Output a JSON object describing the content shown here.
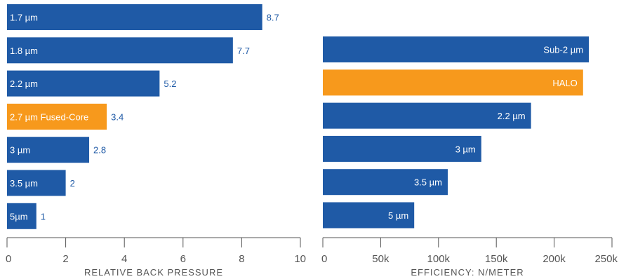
{
  "colors": {
    "bar": "#1f5aa6",
    "highlight": "#f7991c",
    "axis": "#555555",
    "value_text": "#1f5aa6"
  },
  "chart_data": [
    {
      "type": "bar",
      "orientation": "horizontal",
      "categories": [
        "1.7 µm",
        "1.8 µm",
        "2.2 µm",
        "2.7 µm Fused-Core",
        "3 µm",
        "3.5 µm",
        "5µm"
      ],
      "values": [
        8.7,
        7.7,
        5.2,
        3.4,
        2.8,
        2,
        1
      ],
      "value_labels": [
        "8.7",
        "7.7",
        "5.2",
        "3.4",
        "2.8",
        "2",
        "1"
      ],
      "highlight_index": 3,
      "xlabel": "RELATIVE BACK PRESSURE",
      "xlim": [
        0,
        10
      ],
      "xticks": [
        0,
        2,
        4,
        6,
        8,
        10
      ],
      "xtick_labels": [
        "0",
        "2",
        "4",
        "6",
        "8",
        "10"
      ],
      "grid": false
    },
    {
      "type": "bar",
      "orientation": "horizontal",
      "categories": [
        "Sub-2 µm",
        "HALO",
        "2.2 µm",
        "3 µm",
        "3.5 µm",
        "5 µm"
      ],
      "values": [
        230000,
        225000,
        180000,
        137000,
        108000,
        79000
      ],
      "highlight_index": 1,
      "xlabel": "EFFICIENCY: N/METER",
      "xlim": [
        0,
        250000
      ],
      "xticks": [
        0,
        50000,
        100000,
        150000,
        200000,
        250000
      ],
      "xtick_labels": [
        "0",
        "50k",
        "100k",
        "150k",
        "200k",
        "250k"
      ],
      "grid": false
    }
  ]
}
